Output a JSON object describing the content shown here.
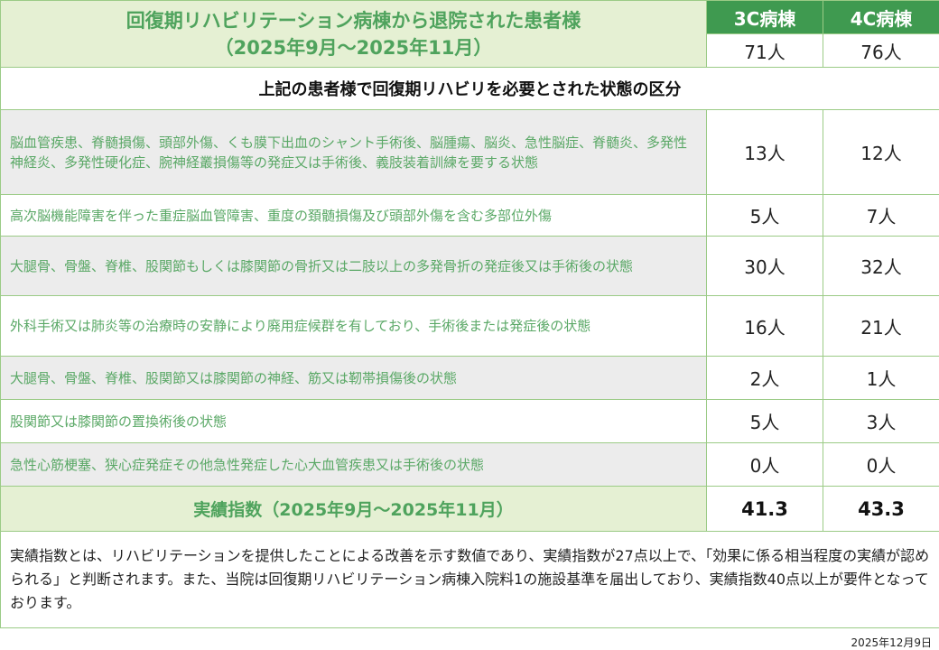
{
  "header": {
    "title_line1": "回復期リハビリテーション病棟から退院された患者様",
    "title_line2": "（2025年9月～2025年11月）",
    "wards": [
      "3C病棟",
      "4C病棟"
    ],
    "totals": [
      "71人",
      "76人"
    ]
  },
  "section_title": "上記の患者様で回復期リハビリを必要とされた状態の区分",
  "rows": [
    {
      "label": "脳血管疾患、脊髄損傷、頭部外傷、くも膜下出血のシャント手術後、脳腫瘍、脳炎、急性脳症、脊髄炎、多発性神経炎、多発性硬化症、腕神経叢損傷等の発症又は手術後、義肢装着訓練を要する状態",
      "v3c": "13人",
      "v4c": "12人"
    },
    {
      "label": "高次脳機能障害を伴った重症脳血管障害、重度の頚髄損傷及び頭部外傷を含む多部位外傷",
      "v3c": "5人",
      "v4c": "7人"
    },
    {
      "label": "大腿骨、骨盤、脊椎、股関節もしくは膝関節の骨折又は二肢以上の多発骨折の発症後又は手術後の状態",
      "v3c": "30人",
      "v4c": "32人"
    },
    {
      "label": "外科手術又は肺炎等の治療時の安静により廃用症候群を有しており、手術後または発症後の状態",
      "v3c": "16人",
      "v4c": "21人"
    },
    {
      "label": "大腿骨、骨盤、脊椎、股関節又は膝関節の神経、筋又は靭帯損傷後の状態",
      "v3c": "2人",
      "v4c": "1人"
    },
    {
      "label": "股関節又は膝関節の置換術後の状態",
      "v3c": "5人",
      "v4c": "3人"
    },
    {
      "label": "急性心筋梗塞、狭心症発症その他急性発症した心大血管疾患又は手術後の状態",
      "v3c": "0人",
      "v4c": "0人"
    }
  ],
  "summary": {
    "label": "実績指数（2025年9月～2025年11月）",
    "v3c": "41.3",
    "v4c": "43.3"
  },
  "note": "実績指数とは、リハビリテーションを提供したことによる改善を示す数値であり、実績指数が27点以上で、「効果に係る相当程度の実績が認められる」と判断されます。また、当院は回復期リハビリテーション病棟入院料1の施設基準を届出しており、実績指数40点以上が要件となっております。",
  "date": "2025年12月9日",
  "colors": {
    "header_green": "#3f9a50",
    "light_green": "#e5f0d3",
    "text_green": "#5aa866"
  }
}
